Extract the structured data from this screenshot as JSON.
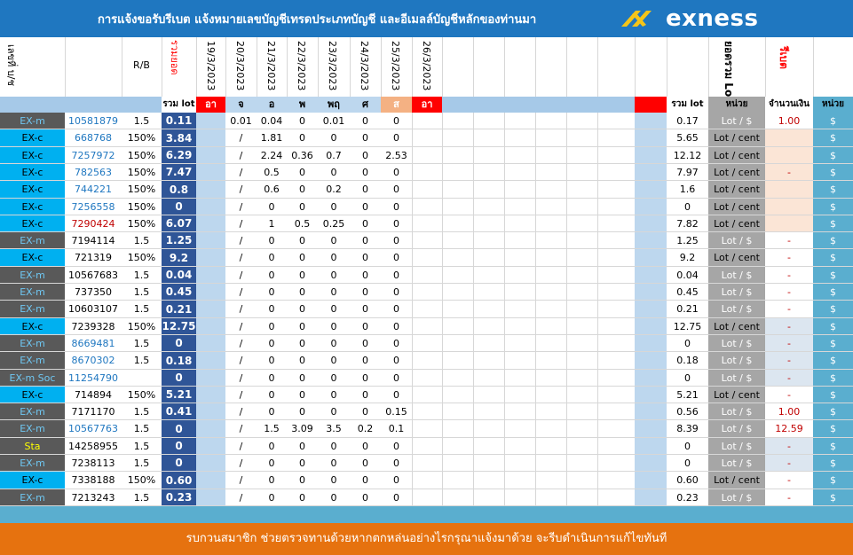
{
  "header": {
    "title": "การแจ้งขอรับรีเบต   แจ้งหมายเลขบัญชีเทรดประเภทบัญชี และอีเมลล์บัญชีหลักของท่านมา",
    "logo_text": "exness"
  },
  "columns": {
    "acct_no": "เลขที่ บ/ช",
    "rb": "R/B",
    "total_lot_vertical": "รวมยอด",
    "dates": [
      "19/3/2023",
      "20/3/2023",
      "21/3/2023",
      "22/3/2023",
      "23/3/2023",
      "24/3/2023",
      "25/3/2023",
      "26/3/2023"
    ],
    "sum_lot_vertical": "ยอดรวม Lot",
    "rebate_vertical": "รีเบต",
    "sum_lot": "รวม lot",
    "days": [
      "อา",
      "จ",
      "อ",
      "พ",
      "พฤ",
      "ศ",
      "ส",
      "อา"
    ],
    "right_total": "รวม lot",
    "unit": "หน่วย",
    "amount": "จำนวนเงิน",
    "unit2": "หน่วย"
  },
  "rows": [
    {
      "type": "EX-m",
      "acct": "10581879",
      "rb": "1.5",
      "total": "0.11",
      "d": [
        "",
        "0.01",
        "0.04",
        "0",
        "0.01",
        "0",
        "0"
      ],
      "sum": "0.17",
      "unit": "Lot / $",
      "amount": "1.00",
      "cur": "$"
    },
    {
      "type": "EX-c",
      "acct": "668768",
      "rb": "150%",
      "total": "3.84",
      "d": [
        "",
        "/",
        "1.81",
        "0",
        "0",
        "0",
        "0"
      ],
      "sum": "5.65",
      "unit": "Lot / cent",
      "amount": "",
      "cur": "$"
    },
    {
      "type": "EX-c",
      "acct": "7257972",
      "rb": "150%",
      "total": "6.29",
      "d": [
        "",
        "/",
        "2.24",
        "0.36",
        "0.7",
        "0",
        "2.53"
      ],
      "sum": "12.12",
      "unit": "Lot / cent",
      "amount": "",
      "cur": "$"
    },
    {
      "type": "EX-c",
      "acct": "782563",
      "rb": "150%",
      "total": "7.47",
      "d": [
        "",
        "/",
        "0.5",
        "0",
        "0",
        "0",
        "0"
      ],
      "sum": "7.97",
      "unit": "Lot / cent",
      "amount": "-",
      "cur": "$"
    },
    {
      "type": "EX-c",
      "acct": "744221",
      "rb": "150%",
      "total": "0.8",
      "d": [
        "",
        "/",
        "0.6",
        "0",
        "0.2",
        "0",
        "0"
      ],
      "sum": "1.6",
      "unit": "Lot / cent",
      "amount": "",
      "cur": "$"
    },
    {
      "type": "EX-c",
      "acct": "7256558",
      "rb": "150%",
      "total": "0",
      "d": [
        "",
        "/",
        "0",
        "0",
        "0",
        "0",
        "0"
      ],
      "sum": "0",
      "unit": "Lot / cent",
      "amount": "",
      "cur": "$"
    },
    {
      "type": "EX-c",
      "acct": "7290424",
      "rb": "150%",
      "total": "6.07",
      "d": [
        "",
        "/",
        "1",
        "0.5",
        "0.25",
        "0",
        "0"
      ],
      "sum": "7.82",
      "unit": "Lot / cent",
      "amount": "",
      "cur": "$"
    },
    {
      "type": "EX-m",
      "acct": "7194114",
      "rb": "1.5",
      "total": "1.25",
      "d": [
        "",
        "/",
        "0",
        "0",
        "0",
        "0",
        "0"
      ],
      "sum": "1.25",
      "unit": "Lot / $",
      "amount": "-",
      "cur": "$"
    },
    {
      "type": "EX-c",
      "acct": "721319",
      "rb": "150%",
      "total": "9.2",
      "d": [
        "",
        "/",
        "0",
        "0",
        "0",
        "0",
        "0"
      ],
      "sum": "9.2",
      "unit": "Lot / cent",
      "amount": "-",
      "cur": "$"
    },
    {
      "type": "EX-m",
      "acct": "10567683",
      "rb": "1.5",
      "total": "0.04",
      "d": [
        "",
        "/",
        "0",
        "0",
        "0",
        "0",
        "0"
      ],
      "sum": "0.04",
      "unit": "Lot / $",
      "amount": "-",
      "cur": "$"
    },
    {
      "type": "EX-m",
      "acct": "737350",
      "rb": "1.5",
      "total": "0.45",
      "d": [
        "",
        "/",
        "0",
        "0",
        "0",
        "0",
        "0"
      ],
      "sum": "0.45",
      "unit": "Lot / $",
      "amount": "-",
      "cur": "$"
    },
    {
      "type": "EX-m",
      "acct": "10603107",
      "rb": "1.5",
      "total": "0.21",
      "d": [
        "",
        "/",
        "0",
        "0",
        "0",
        "0",
        "0"
      ],
      "sum": "0.21",
      "unit": "Lot / $",
      "amount": "-",
      "cur": "$"
    },
    {
      "type": "EX-c",
      "acct": "7239328",
      "rb": "150%",
      "total": "12.75",
      "d": [
        "",
        "/",
        "0",
        "0",
        "0",
        "0",
        "0"
      ],
      "sum": "12.75",
      "unit": "Lot / cent",
      "amount": "-",
      "cur": "$"
    },
    {
      "type": "EX-m",
      "acct": "8669481",
      "rb": "1.5",
      "total": "0",
      "d": [
        "",
        "/",
        "0",
        "0",
        "0",
        "0",
        "0"
      ],
      "sum": "0",
      "unit": "Lot / $",
      "amount": "-",
      "cur": "$"
    },
    {
      "type": "EX-m",
      "acct": "8670302",
      "rb": "1.5",
      "total": "0.18",
      "d": [
        "",
        "/",
        "0",
        "0",
        "0",
        "0",
        "0"
      ],
      "sum": "0.18",
      "unit": "Lot / $",
      "amount": "-",
      "cur": "$"
    },
    {
      "type": "EX-m Soc",
      "acct": "11254790",
      "rb": "",
      "total": "0",
      "d": [
        "",
        "/",
        "0",
        "0",
        "0",
        "0",
        "0"
      ],
      "sum": "0",
      "unit": "Lot / $",
      "amount": "-",
      "cur": "$"
    },
    {
      "type": "EX-c",
      "acct": "714894",
      "rb": "150%",
      "total": "5.21",
      "d": [
        "",
        "/",
        "0",
        "0",
        "0",
        "0",
        "0"
      ],
      "sum": "5.21",
      "unit": "Lot / cent",
      "amount": "-",
      "cur": "$"
    },
    {
      "type": "EX-m",
      "acct": "7171170",
      "rb": "1.5",
      "total": "0.41",
      "d": [
        "",
        "/",
        "0",
        "0",
        "0",
        "0",
        "0.15"
      ],
      "sum": "0.56",
      "unit": "Lot / $",
      "amount": "1.00",
      "cur": "$"
    },
    {
      "type": "EX-m",
      "acct": "10567763",
      "rb": "1.5",
      "total": "0",
      "d": [
        "",
        "/",
        "1.5",
        "3.09",
        "3.5",
        "0.2",
        "0.1"
      ],
      "sum": "8.39",
      "unit": "Lot / $",
      "amount": "12.59",
      "cur": "$"
    },
    {
      "type": "Sta",
      "acct": "14258955",
      "rb": "1.5",
      "total": "0",
      "d": [
        "",
        "/",
        "0",
        "0",
        "0",
        "0",
        "0"
      ],
      "sum": "0",
      "unit": "Lot / $",
      "amount": "-",
      "cur": "$"
    },
    {
      "type": "EX-m",
      "acct": "7238113",
      "rb": "1.5",
      "total": "0",
      "d": [
        "",
        "/",
        "0",
        "0",
        "0",
        "0",
        "0"
      ],
      "sum": "0",
      "unit": "Lot / $",
      "amount": "-",
      "cur": "$"
    },
    {
      "type": "EX-c",
      "acct": "7338188",
      "rb": "150%",
      "total": "0.60",
      "d": [
        "",
        "/",
        "0",
        "0",
        "0",
        "0",
        "0"
      ],
      "sum": "0.60",
      "unit": "Lot / cent",
      "amount": "-",
      "cur": "$"
    },
    {
      "type": "EX-m",
      "acct": "7213243",
      "rb": "1.5",
      "total": "0.23",
      "d": [
        "",
        "/",
        "0",
        "0",
        "0",
        "0",
        "0"
      ],
      "sum": "0.23",
      "unit": "Lot / $",
      "amount": "-",
      "cur": "$"
    }
  ],
  "footer": {
    "text": "รบกวนสมาชิก ช่วยตรวจทานด้วยหากตกหล่นอย่างไรกรุณาแจ้งมาด้วย จะรีบดำเนินการแก้ไขทันที"
  },
  "colors": {
    "header_bg": "#1f77c0",
    "exm_bg": "#595959",
    "exc_bg": "#00b0f0",
    "total_bg": "#2f5597",
    "red": "#ff0000",
    "pink": "#fbe5d6",
    "grey": "#a6a6a6",
    "footer_bg": "#e6720f"
  }
}
